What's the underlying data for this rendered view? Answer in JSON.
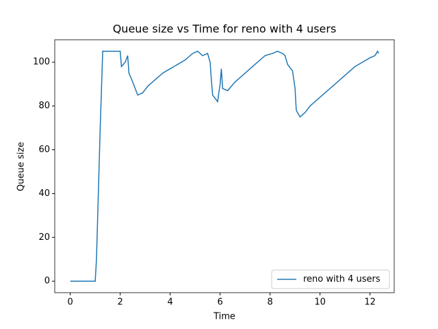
{
  "chart_data": {
    "type": "line",
    "title": "Queue size vs Time for reno with 4 users",
    "x_label": "Time",
    "y_label": "Queue size",
    "xlim": [
      -0.62,
      12.97
    ],
    "ylim": [
      -5.25,
      110.25
    ],
    "xticks": [
      0,
      2,
      4,
      6,
      8,
      10,
      12
    ],
    "yticks": [
      0,
      20,
      40,
      60,
      80,
      100
    ],
    "legend_position": "lower right",
    "x": [
      0,
      1.0,
      1.05,
      1.1,
      1.2,
      1.3,
      2.0,
      2.05,
      2.2,
      2.3,
      2.35,
      2.5,
      2.6,
      2.7,
      2.9,
      3.1,
      3.4,
      3.7,
      4.0,
      4.3,
      4.6,
      4.9,
      5.1,
      5.3,
      5.5,
      5.6,
      5.65,
      5.7,
      5.9,
      6.0,
      6.05,
      6.1,
      6.3,
      6.6,
      6.9,
      7.2,
      7.5,
      7.8,
      8.1,
      8.3,
      8.5,
      8.6,
      8.7,
      8.9,
      9.0,
      9.05,
      9.2,
      9.4,
      9.6,
      9.9,
      10.2,
      10.5,
      10.8,
      11.1,
      11.4,
      11.7,
      12.0,
      12.2,
      12.3,
      12.35
    ],
    "series": [
      {
        "name": "reno with 4 users",
        "color": "#1f77b4",
        "values": [
          0,
          0,
          10,
          30,
          70,
          105,
          105,
          98,
          100,
          103,
          95,
          91,
          88,
          85,
          86,
          89,
          92,
          95,
          97,
          99,
          101,
          104,
          105,
          103,
          104,
          100,
          92,
          85,
          82,
          90,
          97,
          88,
          87,
          91,
          94,
          97,
          100,
          103,
          104,
          105,
          104,
          103,
          99,
          96,
          88,
          78,
          75,
          77,
          80,
          83,
          86,
          89,
          92,
          95,
          98,
          100,
          102,
          103,
          105,
          104
        ]
      }
    ]
  }
}
